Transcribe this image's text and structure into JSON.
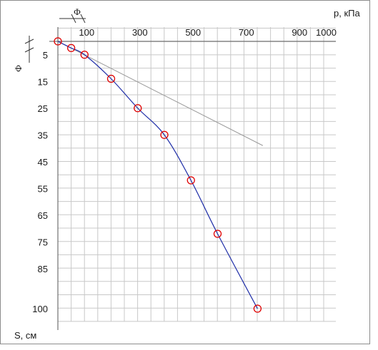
{
  "chart_data": {
    "type": "line",
    "xlabel": "p, кПа",
    "ylabel": "S, см",
    "xlim": [
      -100,
      1100
    ],
    "ylim": [
      0,
      110
    ],
    "x_ticks": [
      100,
      300,
      500,
      700,
      900,
      1000
    ],
    "y_ticks": [
      5,
      15,
      25,
      35,
      45,
      55,
      65,
      75,
      85,
      100
    ],
    "grid": true,
    "markers": {
      "x_marker_label": "Φ",
      "y_marker_label": "Φ"
    },
    "series": [
      {
        "values_x": [
          0,
          50,
          100,
          200,
          300,
          400,
          500,
          600,
          750
        ],
        "values_y": [
          0,
          2.5,
          5,
          14,
          25,
          35,
          52,
          72,
          100
        ],
        "color": "#1f2ea8",
        "marker_color": "#e00000"
      }
    ],
    "reference_line": {
      "x": [
        0,
        770
      ],
      "y": [
        0,
        39
      ],
      "color": "#9a9a9a"
    }
  }
}
